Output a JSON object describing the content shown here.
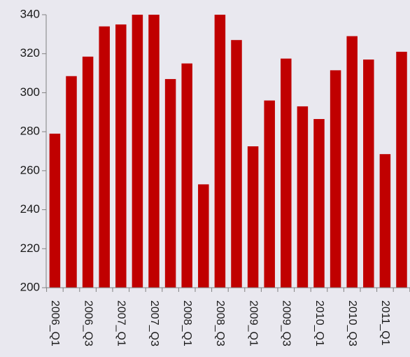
{
  "chart_data": {
    "type": "bar",
    "categories": [
      "2006_Q1",
      "2006_Q2",
      "2006_Q3",
      "2006_Q4",
      "2007_Q1",
      "2007_Q2",
      "2007_Q3",
      "2007_Q4",
      "2008_Q1",
      "2008_Q2",
      "2008_Q3",
      "2008_Q4",
      "2009_Q1",
      "2009_Q2",
      "2009_Q3",
      "2009_Q4",
      "2010_Q1",
      "2010_Q2",
      "2010_Q3",
      "2010_Q4",
      "2011_Q1",
      "2011_Q2"
    ],
    "values": [
      279,
      308.5,
      318.5,
      334,
      335,
      340,
      340,
      307,
      315,
      253,
      340,
      327,
      272.5,
      296,
      317.5,
      293,
      286.5,
      311.5,
      329,
      317,
      268.5,
      321
    ],
    "y_ticks": [
      200,
      220,
      240,
      260,
      280,
      300,
      320,
      340
    ],
    "x_tick_labels": [
      "2006_Q1",
      "2006_Q3",
      "2007_Q1",
      "2007_Q3",
      "2008_Q1",
      "2008_Q3",
      "2009_Q1",
      "2009_Q3",
      "2010_Q1",
      "2010_Q3",
      "2011_Q1"
    ],
    "ylim": [
      200,
      340
    ],
    "title": "",
    "xlabel": "",
    "ylabel": "",
    "bar_color": "#c00000",
    "background_color": "#e9e8ef",
    "axis_color": "#808080",
    "grid": false,
    "legend": "none"
  }
}
